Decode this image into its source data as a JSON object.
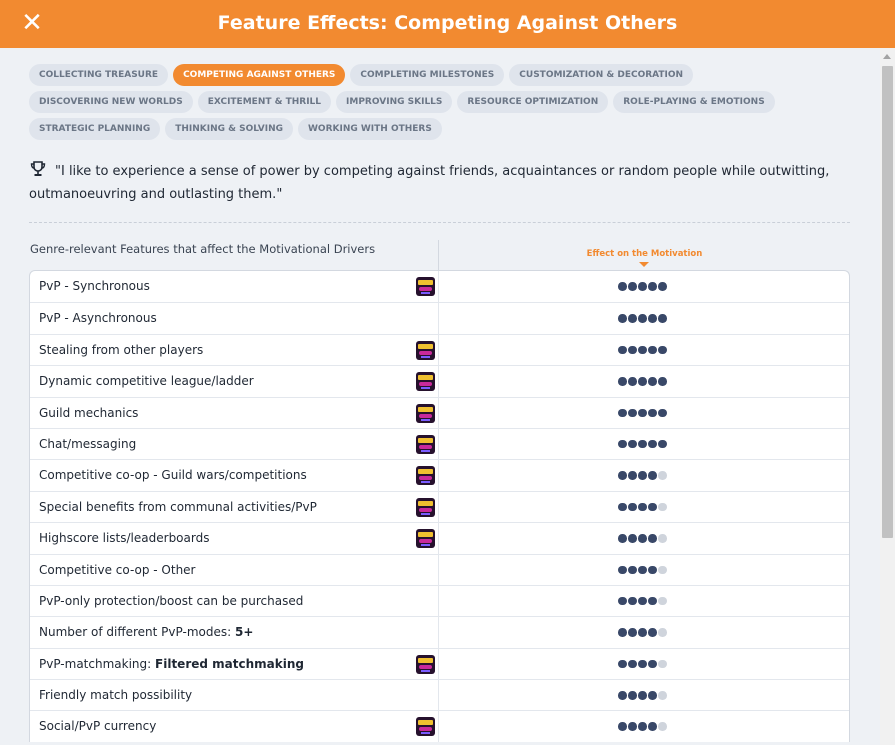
{
  "header": {
    "title": "Feature Effects: Competing Against Others"
  },
  "tags": [
    {
      "label": "COLLECTING TREASURE",
      "active": false
    },
    {
      "label": "COMPETING AGAINST OTHERS",
      "active": true
    },
    {
      "label": "COMPLETING MILESTONES",
      "active": false
    },
    {
      "label": "CUSTOMIZATION & DECORATION",
      "active": false
    },
    {
      "label": "DISCOVERING NEW WORLDS",
      "active": false
    },
    {
      "label": "EXCITEMENT & THRILL",
      "active": false
    },
    {
      "label": "IMPROVING SKILLS",
      "active": false
    },
    {
      "label": "RESOURCE OPTIMIZATION",
      "active": false
    },
    {
      "label": "ROLE-PLAYING & EMOTIONS",
      "active": false
    },
    {
      "label": "STRATEGIC PLANNING",
      "active": false
    },
    {
      "label": "THINKING & SOLVING",
      "active": false
    },
    {
      "label": "WORKING WITH OTHERS",
      "active": false
    }
  ],
  "quote": "\"I like to experience a sense of power by competing against friends, acquaintances or random people while outwitting, outmanoeuvring and outlasting them.\"",
  "table": {
    "left_header": "Genre-relevant Features that affect the Motivational Drivers",
    "right_header": "Effect on the Motivation",
    "rows": [
      {
        "name": "PvP - Synchronous",
        "value": "",
        "icon": true,
        "effect": 5
      },
      {
        "name": "PvP - Asynchronous",
        "value": "",
        "icon": false,
        "effect": 5
      },
      {
        "name": "Stealing from other players",
        "value": "",
        "icon": true,
        "effect": 5
      },
      {
        "name": "Dynamic competitive league/ladder",
        "value": "",
        "icon": true,
        "effect": 5
      },
      {
        "name": "Guild mechanics",
        "value": "",
        "icon": true,
        "effect": 5
      },
      {
        "name": "Chat/messaging",
        "value": "",
        "icon": true,
        "effect": 5
      },
      {
        "name": "Competitive co-op - Guild wars/competitions",
        "value": "",
        "icon": true,
        "effect": 4
      },
      {
        "name": "Special benefits from communal activities/PvP",
        "value": "",
        "icon": true,
        "effect": 4
      },
      {
        "name": "Highscore lists/leaderboards",
        "value": "",
        "icon": true,
        "effect": 4
      },
      {
        "name": "Competitive co-op - Other",
        "value": "",
        "icon": false,
        "effect": 4
      },
      {
        "name": "PvP-only protection/boost can be purchased",
        "value": "",
        "icon": false,
        "effect": 4
      },
      {
        "name": "Number of different PvP-modes:",
        "value": "5+",
        "icon": false,
        "effect": 4
      },
      {
        "name": "PvP-matchmaking:",
        "value": "Filtered matchmaking",
        "icon": true,
        "effect": 4
      },
      {
        "name": "Friendly match possibility",
        "value": "",
        "icon": false,
        "effect": 4
      },
      {
        "name": "Social/PvP currency",
        "value": "",
        "icon": true,
        "effect": 4
      }
    ]
  }
}
